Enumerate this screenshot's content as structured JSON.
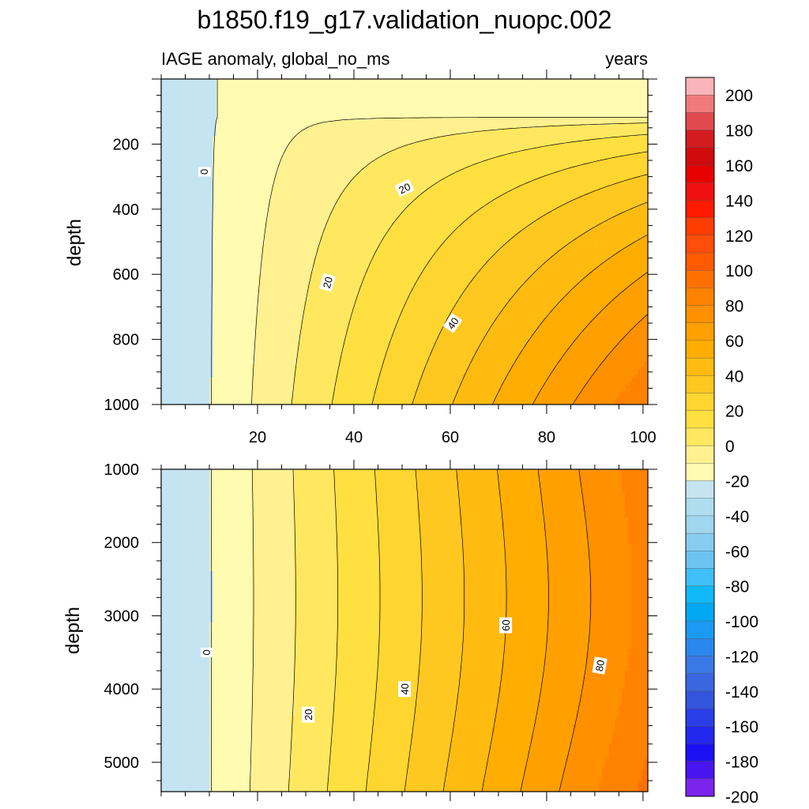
{
  "chart_data": {
    "type": "contour",
    "title": "b1850.f19_g17.validation_nuopc.002",
    "subtitle_left": "IAGE anomaly, global_no_ms",
    "subtitle_right": "years",
    "xlim": [
      0,
      101
    ],
    "xticks": [
      20,
      40,
      60,
      80,
      100
    ],
    "contour_levels": [
      0,
      10,
      20,
      30,
      40,
      50,
      60,
      70,
      80,
      90
    ],
    "upper_panel": {
      "ylabel": "depth",
      "ylim": [
        0,
        1000
      ],
      "yticks": [
        200,
        400,
        600,
        800,
        1000
      ],
      "contour_labels": [
        {
          "text": "0",
          "x": 9,
          "y": 285,
          "rot": 90
        },
        {
          "text": "20",
          "x": 50.5,
          "y": 335,
          "rot": -25
        },
        {
          "text": "20",
          "x": 34.5,
          "y": 625,
          "rot": -75
        },
        {
          "text": "40",
          "x": 60.5,
          "y": 750,
          "rot": -55
        }
      ]
    },
    "lower_panel": {
      "ylabel": "depth",
      "ylim": [
        1000,
        5400
      ],
      "yticks": [
        1000,
        2000,
        3000,
        4000,
        5000
      ],
      "contour_labels": [
        {
          "text": "0",
          "x": 9.5,
          "y": 3500,
          "rot": 90
        },
        {
          "text": "20",
          "x": 30.5,
          "y": 4350,
          "rot": -90
        },
        {
          "text": "40",
          "x": 50.5,
          "y": 4000,
          "rot": -90
        },
        {
          "text": "60",
          "x": 71.5,
          "y": 3130,
          "rot": -90
        },
        {
          "text": "80",
          "x": 91,
          "y": 3680,
          "rot": -80
        }
      ]
    },
    "colorbar": {
      "labels": [
        "200",
        "180",
        "160",
        "140",
        "120",
        "100",
        "80",
        "60",
        "40",
        "20",
        "0",
        "-20",
        "-40",
        "-60",
        "-80",
        "-100",
        "-120",
        "-140",
        "-160",
        "-180",
        "-200"
      ],
      "colors": [
        "#f8b4b8",
        "#f07b7c",
        "#e04a4e",
        "#d41c20",
        "#d00a0d",
        "#e60000",
        "#f01010",
        "#ff1a00",
        "#ff3d00",
        "#ff4d0a",
        "#ff5a00",
        "#ff7000",
        "#ff8200",
        "#ff9000",
        "#ffa000",
        "#ffad00",
        "#ffbb10",
        "#ffc820",
        "#ffd530",
        "#ffe040",
        "#ffe860",
        "#fff090",
        "#fffbb0",
        "#c5e4f2",
        "#b0dcf0",
        "#a0d6ef",
        "#88cdf0",
        "#6cc4f2",
        "#40c0f8",
        "#10b8f8",
        "#00a8f4",
        "#1a9af2",
        "#2a88ec",
        "#3a78e6",
        "#3a66e0",
        "#3355dd",
        "#2a3ee8",
        "#2228ee",
        "#1a10f2",
        "#4a14f0",
        "#7a24ec"
      ]
    }
  }
}
